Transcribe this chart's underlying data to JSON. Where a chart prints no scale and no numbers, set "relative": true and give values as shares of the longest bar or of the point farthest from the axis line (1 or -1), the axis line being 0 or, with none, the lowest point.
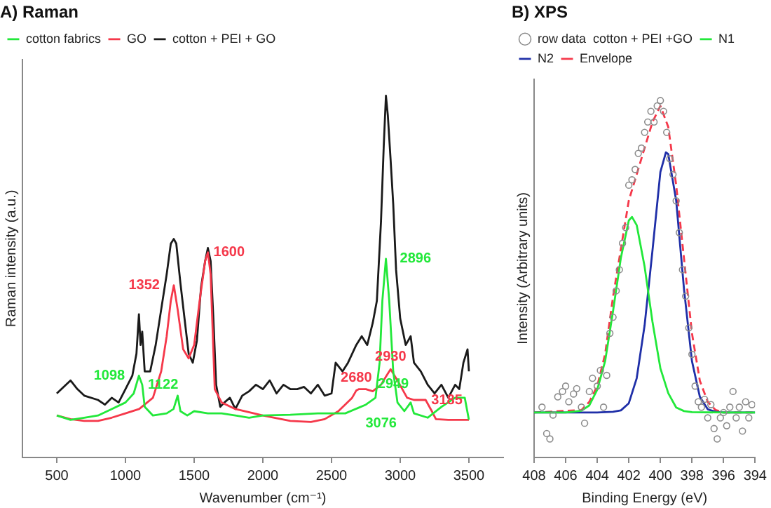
{
  "chart_data": [
    {
      "type": "line",
      "title": "A) Raman",
      "xlabel": "Wavenumber (cm⁻¹)",
      "ylabel": "Raman intensity (a.u.)",
      "relative": true,
      "xlim": [
        250,
        3750
      ],
      "xticks": [
        500,
        1000,
        1500,
        2000,
        2500,
        3000,
        3500
      ],
      "grid": false,
      "legend": "top left",
      "series": [
        {
          "name": "cotton fabrics",
          "color": "#22e83a",
          "x": [
            500,
            600,
            700,
            800,
            900,
            1000,
            1060,
            1098,
            1122,
            1140,
            1200,
            1300,
            1350,
            1380,
            1400,
            1450,
            1500,
            1600,
            1700,
            1800,
            1900,
            2000,
            2200,
            2400,
            2600,
            2750,
            2820,
            2850,
            2870,
            2896,
            2920,
            2949,
            2980,
            3030,
            3076,
            3100,
            3200,
            3300,
            3400,
            3470,
            3500
          ],
          "values": [
            0.116,
            0.104,
            0.11,
            0.116,
            0.134,
            0.152,
            0.177,
            0.226,
            0.201,
            0.14,
            0.116,
            0.122,
            0.134,
            0.171,
            0.128,
            0.116,
            0.128,
            0.122,
            0.122,
            0.116,
            0.11,
            0.116,
            0.118,
            0.122,
            0.122,
            0.146,
            0.165,
            0.262,
            0.433,
            0.549,
            0.433,
            0.238,
            0.152,
            0.128,
            0.152,
            0.122,
            0.11,
            0.14,
            0.165,
            0.165,
            0.104
          ]
        },
        {
          "name": "GO",
          "color": "#f5384a",
          "x": [
            500,
            600,
            700,
            800,
            900,
            1000,
            1100,
            1200,
            1260,
            1300,
            1330,
            1352,
            1380,
            1420,
            1460,
            1500,
            1540,
            1580,
            1600,
            1620,
            1650,
            1700,
            1800,
            2000,
            2200,
            2350,
            2450,
            2550,
            2650,
            2680,
            2700,
            2750,
            2800,
            2860,
            2900,
            2930,
            2980,
            3050,
            3100,
            3185,
            3230,
            3260,
            3350,
            3500
          ],
          "values": [
            0.116,
            0.106,
            0.101,
            0.101,
            0.11,
            0.122,
            0.134,
            0.165,
            0.238,
            0.335,
            0.433,
            0.476,
            0.409,
            0.299,
            0.274,
            0.311,
            0.433,
            0.543,
            0.567,
            0.506,
            0.189,
            0.152,
            0.134,
            0.116,
            0.101,
            0.098,
            0.106,
            0.128,
            0.165,
            0.185,
            0.189,
            0.189,
            0.183,
            0.201,
            0.226,
            0.244,
            0.213,
            0.165,
            0.159,
            0.159,
            0.128,
            0.106,
            0.104,
            0.104
          ]
        },
        {
          "name": "cotton + PEI + GO",
          "color": "#1a1a1a",
          "x": [
            500,
            550,
            600,
            650,
            700,
            800,
            850,
            900,
            950,
            1000,
            1050,
            1080,
            1098,
            1110,
            1122,
            1140,
            1180,
            1220,
            1260,
            1300,
            1330,
            1352,
            1370,
            1400,
            1430,
            1460,
            1490,
            1520,
            1550,
            1580,
            1600,
            1620,
            1640,
            1660,
            1690,
            1720,
            1760,
            1800,
            1850,
            1900,
            1950,
            2000,
            2050,
            2100,
            2150,
            2200,
            2250,
            2300,
            2350,
            2400,
            2450,
            2500,
            2530,
            2580,
            2620,
            2680,
            2720,
            2760,
            2800,
            2830,
            2860,
            2880,
            2896,
            2910,
            2930,
            2949,
            2970,
            3000,
            3040,
            3076,
            3100,
            3150,
            3200,
            3250,
            3300,
            3350,
            3400,
            3430,
            3460,
            3490,
            3500
          ],
          "values": [
            0.177,
            0.195,
            0.213,
            0.189,
            0.171,
            0.159,
            0.146,
            0.165,
            0.152,
            0.189,
            0.226,
            0.287,
            0.396,
            0.311,
            0.348,
            0.238,
            0.238,
            0.311,
            0.409,
            0.506,
            0.591,
            0.604,
            0.591,
            0.482,
            0.384,
            0.287,
            0.262,
            0.323,
            0.47,
            0.543,
            0.579,
            0.543,
            0.384,
            0.201,
            0.14,
            0.152,
            0.165,
            0.134,
            0.171,
            0.183,
            0.201,
            0.189,
            0.213,
            0.177,
            0.201,
            0.189,
            0.189,
            0.195,
            0.177,
            0.201,
            0.171,
            0.177,
            0.262,
            0.238,
            0.262,
            0.311,
            0.335,
            0.311,
            0.372,
            0.433,
            0.652,
            0.86,
            1.0,
            0.945,
            0.823,
            0.701,
            0.518,
            0.384,
            0.311,
            0.335,
            0.262,
            0.238,
            0.201,
            0.177,
            0.201,
            0.165,
            0.201,
            0.189,
            0.262,
            0.299,
            0.238
          ]
        }
      ],
      "annotations": [
        {
          "text": "1098",
          "x": 1098,
          "y": 0.226
        },
        {
          "text": "1122",
          "x": 1122,
          "y": 0.201
        },
        {
          "text": "1352",
          "x": 1352,
          "y": 0.476
        },
        {
          "text": "1600",
          "x": 1600,
          "y": 0.567
        },
        {
          "text": "2680",
          "x": 2680,
          "y": 0.185
        },
        {
          "text": "2896",
          "x": 2896,
          "y": 0.549
        },
        {
          "text": "2930",
          "x": 2930,
          "y": 0.244
        },
        {
          "text": "2949",
          "x": 2949,
          "y": 0.238
        },
        {
          "text": "3076",
          "x": 3076,
          "y": 0.152
        },
        {
          "text": "3185",
          "x": 3185,
          "y": 0.159
        }
      ]
    },
    {
      "type": "line",
      "title": "B) XPS",
      "xlabel": "Binding Energy (eV)",
      "ylabel": "Intensity (Arbitrary units)",
      "relative": true,
      "xlim": [
        408,
        394
      ],
      "xticks": [
        408,
        406,
        404,
        402,
        400,
        398,
        396,
        394
      ],
      "grid": false,
      "legend": "top left",
      "series": [
        {
          "name": "row data  cotton + PEI +GO",
          "type": "scatter",
          "marker": "circle",
          "color": "#8c8c8c",
          "x": [
            407.5,
            407.2,
            407,
            406.8,
            406.5,
            406.2,
            406,
            405.8,
            405.5,
            405.3,
            405,
            404.8,
            404.5,
            404.3,
            404,
            403.8,
            403.6,
            403.4,
            403.2,
            403,
            402.8,
            402.6,
            402.4,
            402.2,
            402,
            401.8,
            401.6,
            401.4,
            401.2,
            401,
            400.8,
            400.6,
            400.4,
            400.2,
            400,
            399.8,
            399.6,
            399.4,
            399.2,
            399,
            398.8,
            398.6,
            398.4,
            398.2,
            398,
            397.8,
            397.6,
            397.4,
            397.2,
            397,
            396.8,
            396.6,
            396.4,
            396.2,
            396,
            395.8,
            395.6,
            395.4,
            395.2,
            395,
            394.8,
            394.6,
            394.4,
            394.2
          ],
          "values": [
            0.141,
            0.067,
            0.052,
            0.119,
            0.17,
            0.185,
            0.2,
            0.156,
            0.178,
            0.193,
            0.141,
            0.096,
            0.185,
            0.222,
            0.2,
            0.244,
            0.141,
            0.23,
            0.348,
            0.393,
            0.467,
            0.526,
            0.6,
            0.644,
            0.763,
            0.778,
            0.807,
            0.852,
            0.867,
            0.911,
            0.94,
            0.97,
            0.94,
            0.985,
            1.0,
            0.97,
            0.911,
            0.837,
            0.793,
            0.719,
            0.63,
            0.526,
            0.452,
            0.363,
            0.289,
            0.2,
            0.156,
            0.141,
            0.163,
            0.111,
            0.148,
            0.081,
            0.052,
            0.111,
            0.126,
            0.089,
            0.141,
            0.185,
            0.111,
            0.141,
            0.074,
            0.156,
            0.111,
            0.148
          ]
        },
        {
          "name": "N1",
          "color": "#22e83a",
          "x": [
            408,
            406,
            405,
            404.5,
            404,
            403.5,
            403,
            402.5,
            402,
            401.8,
            401.5,
            401,
            400.5,
            400,
            399.5,
            399,
            398.5,
            398,
            396,
            394
          ],
          "values": [
            0.126,
            0.126,
            0.131,
            0.146,
            0.19,
            0.27,
            0.41,
            0.56,
            0.664,
            0.674,
            0.651,
            0.535,
            0.38,
            0.25,
            0.18,
            0.14,
            0.13,
            0.127,
            0.126,
            0.126
          ]
        },
        {
          "name": "N2",
          "color": "#1f2fa8",
          "x": [
            408,
            404,
            403,
            402.5,
            402,
            401.5,
            401,
            400.5,
            400,
            399.65,
            399.5,
            399,
            398.5,
            398,
            397.5,
            397,
            396.5,
            396,
            394
          ],
          "values": [
            0.126,
            0.126,
            0.128,
            0.132,
            0.152,
            0.222,
            0.37,
            0.58,
            0.8,
            0.855,
            0.85,
            0.72,
            0.47,
            0.27,
            0.17,
            0.135,
            0.128,
            0.126,
            0.126
          ]
        },
        {
          "name": "Envelope",
          "line_style": "dashed",
          "color": "#f5384a",
          "x": [
            408,
            405,
            404.5,
            404,
            403.5,
            403,
            402.5,
            402,
            401.5,
            401,
            400.5,
            400,
            399.5,
            399,
            398.5,
            398,
            397.5,
            397,
            396.5,
            396,
            394
          ],
          "values": [
            0.126,
            0.133,
            0.156,
            0.2,
            0.29,
            0.45,
            0.585,
            0.72,
            0.793,
            0.867,
            0.94,
            0.985,
            0.926,
            0.763,
            0.556,
            0.348,
            0.215,
            0.156,
            0.133,
            0.126,
            0.126
          ]
        }
      ]
    }
  ]
}
